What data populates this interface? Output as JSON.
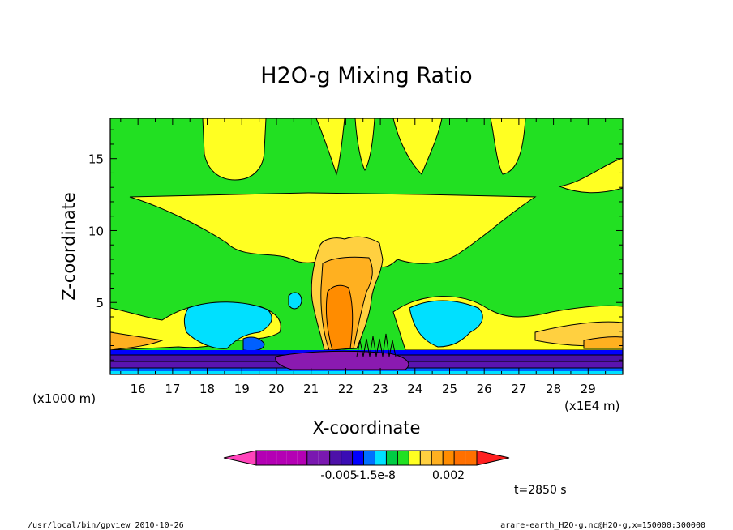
{
  "chart_data": {
    "type": "heatmap",
    "title": "H2O-g Mixing Ratio",
    "xlabel": "X-coordinate",
    "ylabel": "Z-coordinate",
    "x_unit": "(x1E4 m)",
    "y_unit": "(x1000 m)",
    "xlim": [
      15.2,
      30.0
    ],
    "ylim": [
      0,
      17.8
    ],
    "x_ticks": [
      "16",
      "17",
      "18",
      "19",
      "20",
      "21",
      "22",
      "23",
      "24",
      "25",
      "26",
      "27",
      "28",
      "29"
    ],
    "x_tick_values": [
      16,
      17,
      18,
      19,
      20,
      21,
      22,
      23,
      24,
      25,
      26,
      27,
      28,
      29
    ],
    "y_ticks": [
      "5",
      "10",
      "15"
    ],
    "y_tick_values": [
      5,
      10,
      15
    ],
    "colorbar": {
      "tick_labels": [
        "-0.005",
        "-1.5e-8",
        "0.002"
      ],
      "colors": [
        "#ff44bb",
        "#b400b4",
        "#b400b4",
        "#b400b4",
        "#b400b4",
        "#b400b4",
        "#7a18b0",
        "#7a18b0",
        "#4d10a8",
        "#3a0cb4",
        "#0000ff",
        "#0070ff",
        "#00e0ff",
        "#00cc44",
        "#22e022",
        "#ffff22",
        "#ffd040",
        "#ffb020",
        "#ff8c00",
        "#ff7000",
        "#ff7000",
        "#ff2020"
      ]
    },
    "time_label": "t=2850 s",
    "fields": {
      "background": "#22e022",
      "upper_anvil": "#ffff22",
      "core_outer": "#ffd040",
      "core_mid": "#ffb020",
      "core_inner": "#ff8c00",
      "low_cyan": "#00e0ff",
      "low_blue": "#0060ff",
      "surface_purple": "#4a10a8"
    }
  },
  "footer": {
    "left": "/usr/local/bin/gpview  2010-10-26",
    "right": "arare-earth_H2O-g.nc@H2O-g,x=150000:300000"
  }
}
